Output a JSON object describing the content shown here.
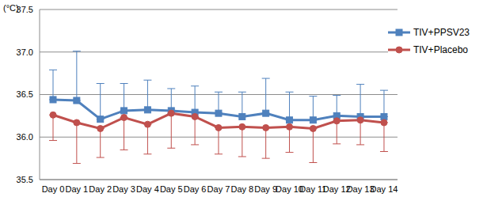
{
  "chart_data": {
    "type": "line",
    "y_label": "(°C)",
    "categories": [
      "Day 0",
      "Day 1",
      "Day 2",
      "Day 3",
      "Day 4",
      "Day 5",
      "Day 6",
      "Day 7",
      "Day 8",
      "Day 9",
      "Day 10",
      "Day 11",
      "Day 12",
      "Day 13",
      "Day 14"
    ],
    "series": [
      {
        "name": "TIV+PPSV23",
        "color": "#4f81bd",
        "marker": "square",
        "values": [
          36.44,
          36.43,
          36.21,
          36.31,
          36.32,
          36.31,
          36.29,
          36.28,
          36.24,
          36.28,
          36.2,
          36.2,
          36.25,
          36.24,
          36.24
        ],
        "error_plus": [
          0.35,
          0.58,
          0.42,
          0.32,
          0.35,
          0.26,
          0.31,
          0.25,
          0.29,
          0.41,
          0.33,
          0.28,
          0.24,
          0.38,
          0.31
        ]
      },
      {
        "name": "TIV+Placebo",
        "color": "#c0504d",
        "marker": "circle",
        "values": [
          36.26,
          36.17,
          36.1,
          36.23,
          36.15,
          36.28,
          36.24,
          36.11,
          36.12,
          36.11,
          36.12,
          36.1,
          36.19,
          36.2,
          36.17
        ],
        "error_minus": [
          0.3,
          0.48,
          0.34,
          0.38,
          0.35,
          0.41,
          0.33,
          0.31,
          0.35,
          0.36,
          0.3,
          0.4,
          0.27,
          0.29,
          0.34
        ]
      }
    ],
    "ylim": [
      35.5,
      37.5
    ],
    "yticks": [
      35.5,
      {
        "value": 36,
        "label": "36.0"
      },
      36.5,
      {
        "value": 37,
        "label": "37.0"
      },
      37.5
    ],
    "grid": true,
    "legend": "upper right"
  }
}
